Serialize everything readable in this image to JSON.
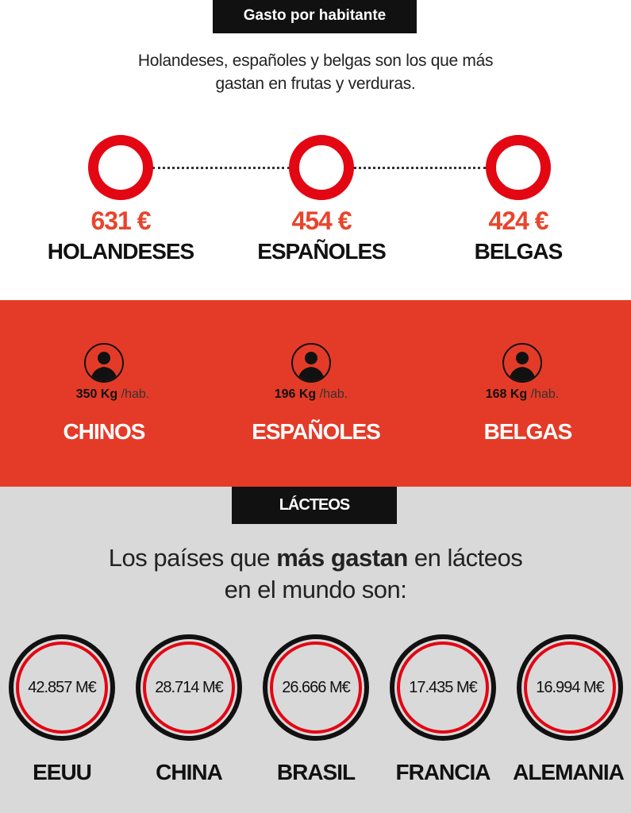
{
  "header": {
    "title": "Gasto por habitante",
    "subtitle_line1": "Holandeses, españoles y belgas son los que más",
    "subtitle_line2": "gastan en frutas y verduras."
  },
  "fruit_spending": [
    {
      "value": "631 €",
      "name": "HOLANDESES"
    },
    {
      "value": "454 €",
      "name": "ESPAÑOLES"
    },
    {
      "value": "424 €",
      "name": "BELGAS"
    }
  ],
  "consumption": {
    "unit": "/hab.",
    "items": [
      {
        "amount": "350 Kg",
        "name": "CHINOS"
      },
      {
        "amount": "196 Kg",
        "name": "ESPAÑOLES"
      },
      {
        "amount": "168 Kg",
        "name": "BELGAS"
      }
    ]
  },
  "dairy": {
    "label": "LÁCTEOS",
    "heading_pre": "Los países que ",
    "heading_bold": "más gastan",
    "heading_post": " en lácteos",
    "heading_line2": "en el mundo son:",
    "countries": [
      {
        "value": "42.857 M€",
        "name": "EEUU"
      },
      {
        "value": "28.714 M€",
        "name": "CHINA"
      },
      {
        "value": "26.666 M€",
        "name": "BRASIL"
      },
      {
        "value": "17.435 M€",
        "name": "FRANCIA"
      },
      {
        "value": "16.994 M€",
        "name": "ALEMANIA"
      }
    ]
  },
  "colors": {
    "red": "#e30613",
    "band": "#e43b28",
    "gray": "#d9d9d9",
    "black": "#111111"
  }
}
